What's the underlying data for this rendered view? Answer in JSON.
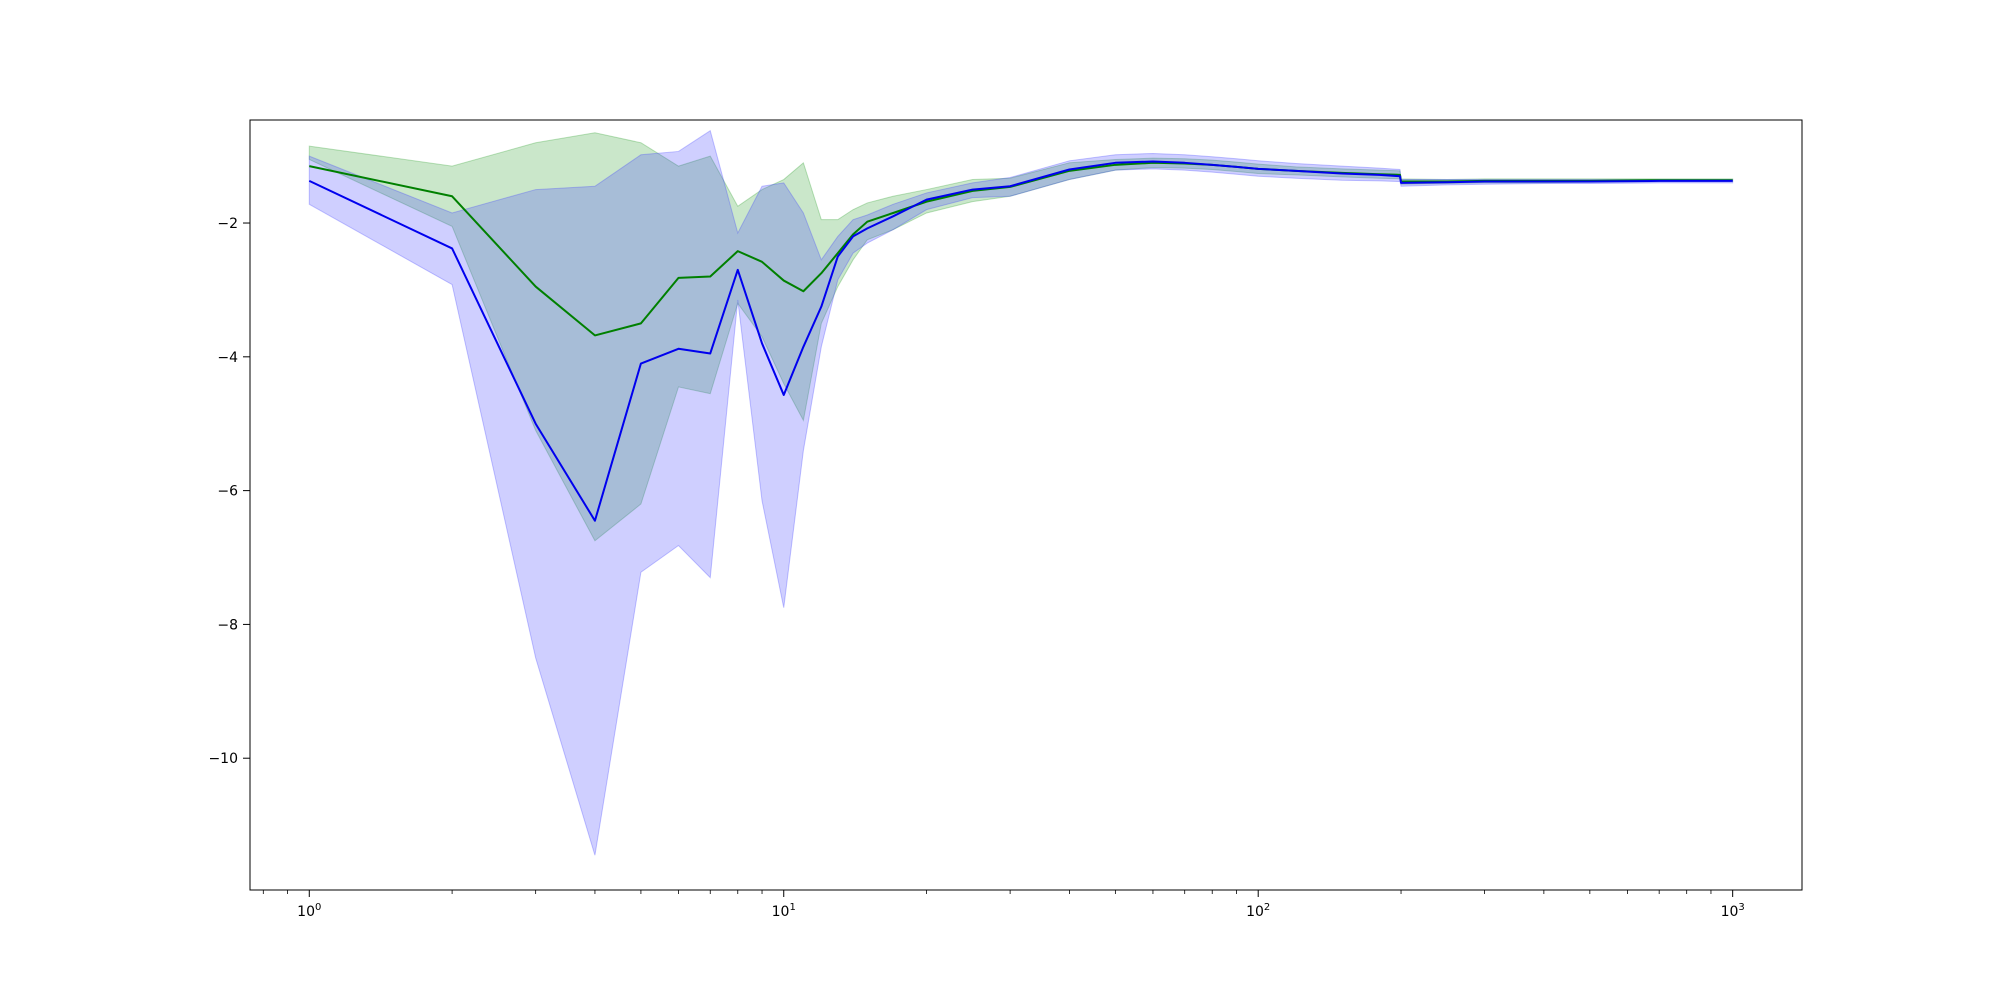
{
  "chart_data": {
    "type": "line",
    "title": "",
    "xlabel": "",
    "ylabel": "",
    "xscale": "log",
    "xlim": [
      0.75,
      1400
    ],
    "ylim": [
      -11.97,
      -0.46
    ],
    "grid": false,
    "legend": "none",
    "x_ticks": [
      {
        "value": 1,
        "base": "10",
        "exp": "0"
      },
      {
        "value": 10,
        "base": "10",
        "exp": "1"
      },
      {
        "value": 100,
        "base": "10",
        "exp": "2"
      },
      {
        "value": 1000,
        "base": "10",
        "exp": "3"
      }
    ],
    "y_ticks": [
      {
        "value": -2,
        "label": "−2"
      },
      {
        "value": -4,
        "label": "−4"
      },
      {
        "value": -6,
        "label": "−6"
      },
      {
        "value": -8,
        "label": "−8"
      },
      {
        "value": -10,
        "label": "−10"
      }
    ],
    "series": [
      {
        "color": "#008000",
        "band_color": "#2ca02c",
        "x": [
          1,
          2,
          3,
          4,
          5,
          6,
          7,
          8,
          9,
          10,
          11,
          12,
          13,
          14,
          15,
          17,
          20,
          25,
          30,
          40,
          50,
          60,
          70,
          80,
          90,
          100,
          120,
          150,
          180,
          199,
          200,
          250,
          300,
          400,
          500,
          700,
          1000
        ],
        "values": [
          -1.15,
          -1.6,
          -2.95,
          -3.68,
          -3.5,
          -2.82,
          -2.8,
          -2.42,
          -2.58,
          -2.86,
          -3.02,
          -2.75,
          -2.45,
          -2.17,
          -1.98,
          -1.85,
          -1.68,
          -1.52,
          -1.46,
          -1.22,
          -1.13,
          -1.1,
          -1.11,
          -1.13,
          -1.16,
          -1.19,
          -1.22,
          -1.25,
          -1.27,
          -1.28,
          -1.38,
          -1.38,
          -1.37,
          -1.37,
          -1.37,
          -1.36,
          -1.36
        ],
        "upper": [
          -0.85,
          -1.15,
          -0.8,
          -0.65,
          -0.8,
          -1.15,
          -1.0,
          -1.75,
          -1.5,
          -1.35,
          -1.1,
          -1.95,
          -1.95,
          -1.8,
          -1.7,
          -1.6,
          -1.5,
          -1.35,
          -1.33,
          -1.1,
          -1.05,
          -1.03,
          -1.04,
          -1.06,
          -1.09,
          -1.12,
          -1.16,
          -1.19,
          -1.21,
          -1.22,
          -1.34,
          -1.35,
          -1.34,
          -1.34,
          -1.34,
          -1.34,
          -1.34
        ],
        "lower": [
          -1.05,
          -2.05,
          -5.1,
          -6.75,
          -6.2,
          -4.45,
          -4.55,
          -3.2,
          -3.7,
          -4.4,
          -4.95,
          -3.5,
          -2.95,
          -2.55,
          -2.25,
          -2.1,
          -1.85,
          -1.68,
          -1.6,
          -1.35,
          -1.21,
          -1.17,
          -1.18,
          -1.2,
          -1.23,
          -1.26,
          -1.28,
          -1.31,
          -1.33,
          -1.34,
          -1.42,
          -1.41,
          -1.4,
          -1.4,
          -1.39,
          -1.38,
          -1.38
        ]
      },
      {
        "color": "#0000ee",
        "band_color": "#4040ff",
        "x": [
          1,
          2,
          3,
          4,
          5,
          6,
          7,
          8,
          9,
          10,
          11,
          12,
          13,
          14,
          15,
          17,
          20,
          25,
          30,
          40,
          50,
          60,
          70,
          80,
          90,
          100,
          120,
          150,
          180,
          199,
          200,
          250,
          300,
          400,
          500,
          700,
          1000
        ],
        "values": [
          -1.37,
          -2.38,
          -5.0,
          -6.45,
          -4.1,
          -3.88,
          -3.95,
          -2.7,
          -3.8,
          -4.57,
          -3.85,
          -3.25,
          -2.5,
          -2.2,
          -2.08,
          -1.9,
          -1.65,
          -1.5,
          -1.45,
          -1.2,
          -1.1,
          -1.08,
          -1.1,
          -1.13,
          -1.16,
          -1.19,
          -1.22,
          -1.26,
          -1.28,
          -1.3,
          -1.4,
          -1.39,
          -1.38,
          -1.38,
          -1.38,
          -1.37,
          -1.37
        ],
        "upper": [
          -1.0,
          -1.85,
          -1.5,
          -1.45,
          -0.98,
          -0.93,
          -0.62,
          -2.15,
          -1.45,
          -1.4,
          -1.85,
          -2.55,
          -2.2,
          -1.95,
          -1.88,
          -1.72,
          -1.55,
          -1.4,
          -1.32,
          -1.07,
          -0.98,
          -0.96,
          -0.98,
          -1.01,
          -1.04,
          -1.07,
          -1.11,
          -1.15,
          -1.18,
          -1.2,
          -1.35,
          -1.35,
          -1.35,
          -1.35,
          -1.35,
          -1.35,
          -1.35
        ],
        "lower": [
          -1.72,
          -2.92,
          -8.5,
          -11.45,
          -7.22,
          -6.82,
          -7.3,
          -3.15,
          -6.15,
          -7.75,
          -5.4,
          -3.85,
          -2.85,
          -2.45,
          -2.3,
          -2.1,
          -1.8,
          -1.62,
          -1.6,
          -1.35,
          -1.21,
          -1.19,
          -1.21,
          -1.24,
          -1.27,
          -1.3,
          -1.33,
          -1.36,
          -1.37,
          -1.38,
          -1.45,
          -1.43,
          -1.42,
          -1.41,
          -1.41,
          -1.4,
          -1.4
        ]
      }
    ]
  }
}
